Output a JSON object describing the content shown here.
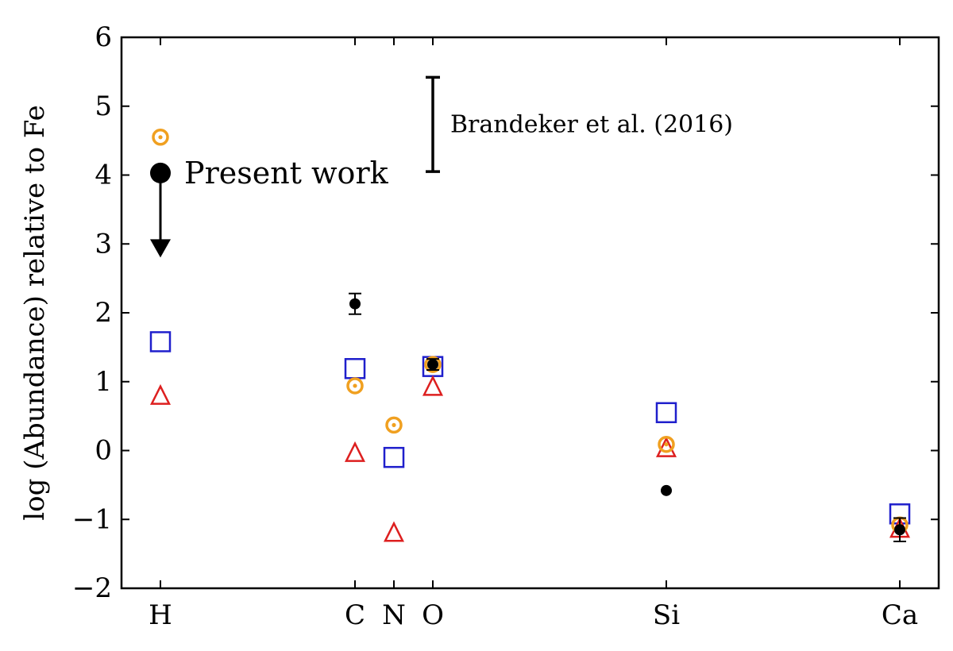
{
  "chart_data": {
    "type": "scatter",
    "title": "",
    "ylabel": "log (Abundance) relative to Fe",
    "xlabel": "",
    "ylim": [
      -2,
      6
    ],
    "yticks": [
      -2,
      -1,
      0,
      1,
      2,
      3,
      4,
      5,
      6
    ],
    "ytick_labels": [
      "−2",
      "−1",
      "0",
      "1",
      "2",
      "3",
      "4",
      "5",
      "6"
    ],
    "x_positions": [
      1,
      6,
      7,
      8,
      14,
      20
    ],
    "categories": [
      "H",
      "C",
      "N",
      "O",
      "Si",
      "Ca"
    ],
    "xlim": [
      0,
      21
    ],
    "colors": {
      "orange": "#f0a020",
      "blue": "#1f1fcc",
      "red": "#dd1f1f",
      "black": "#000000"
    },
    "series": [
      {
        "marker": "dotted-circle",
        "color": "#f0a020",
        "points": [
          {
            "x": "H",
            "y": 4.55
          },
          {
            "x": "C",
            "y": 0.94
          },
          {
            "x": "N",
            "y": 0.37
          },
          {
            "x": "O",
            "y": 1.25
          },
          {
            "x": "Si",
            "y": 0.09
          },
          {
            "x": "Ca",
            "y": -1.08
          }
        ]
      },
      {
        "marker": "open-square",
        "color": "#1f1fcc",
        "points": [
          {
            "x": "H",
            "y": 1.58
          },
          {
            "x": "C",
            "y": 1.19
          },
          {
            "x": "N",
            "y": -0.1
          },
          {
            "x": "O",
            "y": 1.22
          },
          {
            "x": "Si",
            "y": 0.55
          },
          {
            "x": "Ca",
            "y": -0.92
          }
        ]
      },
      {
        "marker": "open-triangle",
        "color": "#dd1f1f",
        "points": [
          {
            "x": "H",
            "y": 0.78
          },
          {
            "x": "C",
            "y": -0.05
          },
          {
            "x": "N",
            "y": -1.21
          },
          {
            "x": "O",
            "y": 0.91
          },
          {
            "x": "Si",
            "y": 0.02
          },
          {
            "x": "Ca",
            "y": -1.15
          }
        ]
      },
      {
        "marker": "filled-circle",
        "color": "#000000",
        "points": [
          {
            "x": "C",
            "y": 2.13,
            "err": 0.15
          },
          {
            "x": "O",
            "y": 1.25,
            "err": 0.08
          },
          {
            "x": "Si",
            "y": -0.58
          },
          {
            "x": "Ca",
            "y": -1.15,
            "err": 0.17
          }
        ]
      }
    ],
    "upper_limit": {
      "x": "H",
      "y": 4.03,
      "to": 2.93
    },
    "annotations": {
      "present_work": "Present work",
      "brandeker": "Brandeker et al. (2016)"
    },
    "reference_bar": {
      "x": 8,
      "ymin": 4.05,
      "ymax": 5.42
    }
  }
}
